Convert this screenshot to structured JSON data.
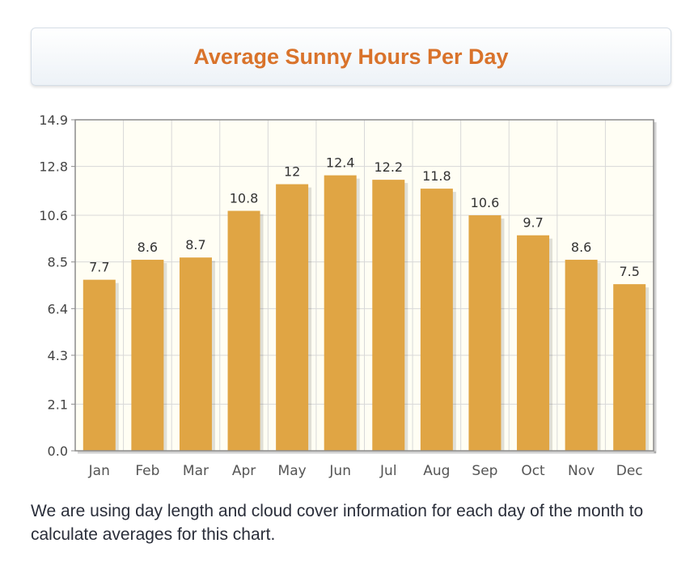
{
  "header": {
    "title": "Average Sunny Hours Per Day"
  },
  "caption": "We are using day length and cloud cover information for each day of the month to calculate averages for this chart.",
  "colors": {
    "bar": "#e0a544",
    "plot_background": "#fffef4",
    "title": "#d9732b",
    "grid": "#d8d8d8",
    "axis": "#8c8c8c"
  },
  "chart_data": {
    "type": "bar",
    "title": "Average Sunny Hours Per Day",
    "xlabel": "",
    "ylabel": "",
    "categories": [
      "Jan",
      "Feb",
      "Mar",
      "Apr",
      "May",
      "Jun",
      "Jul",
      "Aug",
      "Sep",
      "Oct",
      "Nov",
      "Dec"
    ],
    "values": [
      7.7,
      8.6,
      8.7,
      10.8,
      12,
      12.4,
      12.2,
      11.8,
      10.6,
      9.7,
      8.6,
      7.5
    ],
    "value_labels": [
      "7.7",
      "8.6",
      "8.7",
      "10.8",
      "12",
      "12.4",
      "12.2",
      "11.8",
      "10.6",
      "9.7",
      "8.6",
      "7.5"
    ],
    "ylim": [
      0,
      14.9
    ],
    "yticks": [
      "0.0",
      "2.1",
      "4.3",
      "6.4",
      "8.5",
      "10.6",
      "12.8",
      "14.9"
    ],
    "grid": true,
    "legend": false
  }
}
